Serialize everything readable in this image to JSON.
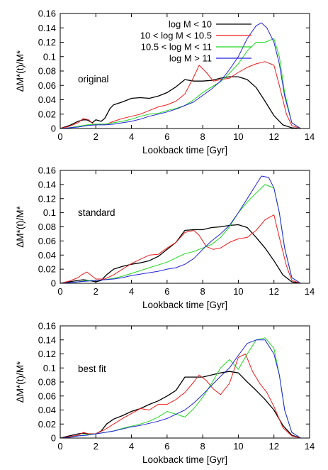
{
  "figure": {
    "ylabel": "ΔM*(t)/M*",
    "xlabel": "Lookback time [Gyr]",
    "colors": {
      "log M < 10": "#000000",
      "10 < log M < 10.5": "#ee1c1c",
      "10.5 < log M < 11": "#1fd81f",
      "log M > 11": "#2222dd"
    }
  },
  "chart_data": [
    {
      "type": "line",
      "panel_label": "original",
      "xlabel": "Lookback time [Gyr]",
      "ylabel": "ΔM*(t)/M*",
      "xlim": [
        0,
        14
      ],
      "ylim": [
        0,
        0.16
      ],
      "xticks": [
        "0",
        "2",
        "4",
        "6",
        "8",
        "10",
        "12",
        "14"
      ],
      "yticks": [
        "0",
        "0.02",
        "0.04",
        "0.06",
        "0.08",
        "0.1",
        "0.12",
        "0.14",
        "0.16"
      ],
      "legend": [
        "log M < 10",
        "10 < log M < 10.5",
        "10.5 < log M < 11",
        "log M > 11"
      ],
      "legend_position": "top-center",
      "grid": false,
      "series": [
        {
          "name": "log M < 10",
          "color": "#000000",
          "x": [
            0,
            0.5,
            1,
            1.3,
            1.5,
            1.8,
            2,
            2.3,
            2.5,
            2.8,
            3,
            3.5,
            4,
            4.5,
            5,
            5.5,
            6,
            6.5,
            7,
            7.5,
            8,
            8.5,
            9,
            9.5,
            10,
            10.5,
            11,
            11.5,
            12,
            12.5,
            13,
            13.5
          ],
          "y": [
            0,
            0.004,
            0.01,
            0.012,
            0.012,
            0.008,
            0.012,
            0.01,
            0.014,
            0.028,
            0.033,
            0.037,
            0.042,
            0.043,
            0.042,
            0.045,
            0.05,
            0.058,
            0.068,
            0.066,
            0.066,
            0.067,
            0.07,
            0.072,
            0.072,
            0.068,
            0.057,
            0.038,
            0.018,
            0.005,
            0.001,
            0
          ]
        },
        {
          "name": "10 < log M < 10.5",
          "color": "#ee1c1c",
          "x": [
            0,
            0.5,
            1,
            1.3,
            1.6,
            1.9,
            2.2,
            2.6,
            3,
            3.5,
            4,
            4.5,
            5,
            5.5,
            6,
            6.5,
            7,
            7.5,
            7.8,
            8.2,
            8.6,
            9,
            9.5,
            10,
            10.5,
            11,
            11.5,
            12,
            12.3,
            12.7,
            13,
            13.5
          ],
          "y": [
            0,
            0.003,
            0.008,
            0.014,
            0.012,
            0.005,
            0.006,
            0.006,
            0.01,
            0.014,
            0.017,
            0.02,
            0.025,
            0.03,
            0.033,
            0.038,
            0.048,
            0.072,
            0.088,
            0.078,
            0.066,
            0.068,
            0.07,
            0.078,
            0.085,
            0.09,
            0.093,
            0.088,
            0.06,
            0.02,
            0.004,
            0
          ]
        },
        {
          "name": "10.5 < log M < 11",
          "color": "#1fd81f",
          "x": [
            0,
            0.5,
            1,
            1.5,
            2,
            2.5,
            3,
            3.5,
            4,
            4.5,
            5,
            5.5,
            6,
            6.5,
            7,
            7.5,
            8,
            8.5,
            9,
            9.5,
            10,
            10.5,
            11,
            11.5,
            12,
            12.3,
            12.6,
            13,
            13.5
          ],
          "y": [
            0,
            0.001,
            0.003,
            0.005,
            0.006,
            0.006,
            0.008,
            0.01,
            0.013,
            0.017,
            0.02,
            0.021,
            0.025,
            0.028,
            0.032,
            0.04,
            0.05,
            0.058,
            0.065,
            0.077,
            0.09,
            0.108,
            0.12,
            0.12,
            0.125,
            0.1,
            0.05,
            0.008,
            0
          ]
        },
        {
          "name": "log M > 11",
          "color": "#2222dd",
          "x": [
            0,
            0.5,
            1,
            1.5,
            2,
            2.5,
            3,
            3.5,
            4,
            4.5,
            5,
            5.5,
            6,
            6.5,
            7,
            7.5,
            8,
            8.5,
            9,
            9.5,
            10,
            10.5,
            11,
            11.3,
            11.6,
            12,
            12.3,
            12.6,
            13,
            13.5
          ],
          "y": [
            0,
            0.001,
            0.002,
            0.004,
            0.005,
            0.005,
            0.006,
            0.008,
            0.01,
            0.013,
            0.017,
            0.02,
            0.023,
            0.027,
            0.032,
            0.037,
            0.046,
            0.055,
            0.066,
            0.082,
            0.1,
            0.125,
            0.143,
            0.147,
            0.14,
            0.12,
            0.09,
            0.045,
            0.008,
            0
          ]
        }
      ]
    },
    {
      "type": "line",
      "panel_label": "standard",
      "xlabel": "Lookback time [Gyr]",
      "ylabel": "ΔM*(t)/M*",
      "xlim": [
        0,
        14
      ],
      "ylim": [
        0,
        0.16
      ],
      "xticks": [
        "0",
        "2",
        "4",
        "6",
        "8",
        "10",
        "12",
        "14"
      ],
      "yticks": [
        "0",
        "0.02",
        "0.04",
        "0.06",
        "0.08",
        "0.1",
        "0.12",
        "0.14",
        "0.16"
      ],
      "grid": false,
      "series": [
        {
          "name": "log M < 10",
          "color": "#000000",
          "x": [
            0,
            0.5,
            1,
            1.3,
            1.6,
            2,
            2.3,
            2.6,
            3,
            3.5,
            4,
            4.5,
            5,
            5.5,
            6,
            6.5,
            7,
            7.5,
            8,
            8.5,
            9,
            9.5,
            10,
            10.5,
            11,
            11.5,
            12,
            12.5,
            13,
            13.5
          ],
          "y": [
            0,
            0.002,
            0.004,
            0.005,
            0.004,
            0.002,
            0.004,
            0.012,
            0.02,
            0.024,
            0.027,
            0.029,
            0.032,
            0.038,
            0.048,
            0.058,
            0.075,
            0.076,
            0.076,
            0.079,
            0.08,
            0.082,
            0.083,
            0.079,
            0.065,
            0.05,
            0.032,
            0.012,
            0.002,
            0
          ]
        },
        {
          "name": "10 < log M < 10.5",
          "color": "#ee1c1c",
          "x": [
            0,
            0.5,
            1,
            1.2,
            1.5,
            1.8,
            2,
            2.5,
            3,
            3.5,
            4,
            4.5,
            5,
            5.5,
            6,
            6.5,
            7,
            7.5,
            7.8,
            8.2,
            8.6,
            9,
            9.5,
            10,
            10.5,
            11,
            11.5,
            12,
            12.3,
            12.7,
            13,
            13.5
          ],
          "y": [
            0,
            0.003,
            0.008,
            0.012,
            0.016,
            0.01,
            0.006,
            0.006,
            0.012,
            0.02,
            0.028,
            0.034,
            0.04,
            0.041,
            0.05,
            0.058,
            0.072,
            0.075,
            0.068,
            0.052,
            0.048,
            0.05,
            0.058,
            0.063,
            0.065,
            0.075,
            0.09,
            0.097,
            0.065,
            0.025,
            0.004,
            0
          ]
        },
        {
          "name": "10.5 < log M < 11",
          "color": "#1fd81f",
          "x": [
            0,
            0.5,
            1,
            1.5,
            2,
            2.5,
            3,
            3.5,
            4,
            4.5,
            5,
            5.5,
            6,
            6.5,
            7,
            7.5,
            8,
            8.5,
            9,
            9.5,
            10,
            10.5,
            11,
            11.5,
            12,
            12.3,
            12.6,
            13,
            13.5
          ],
          "y": [
            0,
            0.001,
            0.002,
            0.004,
            0.004,
            0.005,
            0.007,
            0.01,
            0.014,
            0.018,
            0.022,
            0.026,
            0.03,
            0.036,
            0.042,
            0.045,
            0.05,
            0.055,
            0.065,
            0.08,
            0.1,
            0.115,
            0.128,
            0.14,
            0.135,
            0.1,
            0.05,
            0.008,
            0
          ]
        },
        {
          "name": "log M > 11",
          "color": "#2222dd",
          "x": [
            0,
            0.5,
            1,
            1.5,
            2,
            2.5,
            3,
            3.5,
            4,
            4.5,
            5,
            5.5,
            6,
            6.5,
            7,
            7.5,
            8,
            8.5,
            9,
            9.5,
            10,
            10.5,
            11,
            11.3,
            11.7,
            12,
            12.3,
            12.6,
            13,
            13.5
          ],
          "y": [
            0,
            0.001,
            0.002,
            0.003,
            0.004,
            0.005,
            0.006,
            0.008,
            0.011,
            0.013,
            0.015,
            0.017,
            0.02,
            0.022,
            0.027,
            0.035,
            0.048,
            0.06,
            0.07,
            0.082,
            0.1,
            0.12,
            0.14,
            0.152,
            0.15,
            0.135,
            0.1,
            0.05,
            0.008,
            0
          ]
        }
      ]
    },
    {
      "type": "line",
      "panel_label": "best fit",
      "xlabel": "Lookback time [Gyr]",
      "ylabel": "ΔM*(t)/M*",
      "xlim": [
        0,
        14
      ],
      "ylim": [
        0,
        0.16
      ],
      "xticks": [
        "0",
        "2",
        "4",
        "6",
        "8",
        "10",
        "12",
        "14"
      ],
      "yticks": [
        "0",
        "0.02",
        "0.04",
        "0.06",
        "0.08",
        "0.1",
        "0.12",
        "0.14",
        "0.16"
      ],
      "grid": false,
      "series": [
        {
          "name": "log M < 10",
          "color": "#000000",
          "x": [
            0,
            0.5,
            1,
            1.3,
            1.6,
            2,
            2.3,
            2.6,
            3,
            3.5,
            4,
            4.5,
            5,
            5.5,
            6,
            6.5,
            7,
            7.5,
            8,
            8.5,
            9,
            9.5,
            10,
            10.5,
            11,
            11.5,
            12,
            12.5,
            13,
            13.5
          ],
          "y": [
            0,
            0.003,
            0.006,
            0.007,
            0.006,
            0.006,
            0.01,
            0.02,
            0.027,
            0.032,
            0.038,
            0.042,
            0.048,
            0.053,
            0.06,
            0.068,
            0.087,
            0.087,
            0.087,
            0.09,
            0.093,
            0.095,
            0.093,
            0.08,
            0.068,
            0.055,
            0.04,
            0.018,
            0.004,
            0
          ]
        },
        {
          "name": "10 < log M < 10.5",
          "color": "#ee1c1c",
          "x": [
            0,
            0.5,
            1,
            1.3,
            1.6,
            2,
            2.5,
            3,
            3.5,
            4,
            4.5,
            5,
            5.5,
            6,
            6.5,
            7,
            7.5,
            7.8,
            8.2,
            8.6,
            9,
            9.5,
            10,
            10.4,
            10.8,
            11.2,
            11.6,
            12,
            12.5,
            13,
            13.5
          ],
          "y": [
            0,
            0.002,
            0.004,
            0.008,
            0.006,
            0.006,
            0.012,
            0.02,
            0.028,
            0.035,
            0.042,
            0.04,
            0.048,
            0.048,
            0.055,
            0.065,
            0.08,
            0.09,
            0.082,
            0.07,
            0.062,
            0.078,
            0.115,
            0.12,
            0.095,
            0.078,
            0.065,
            0.045,
            0.015,
            0.003,
            0
          ]
        },
        {
          "name": "10.5 < log M < 11",
          "color": "#1fd81f",
          "x": [
            0,
            0.5,
            1,
            1.5,
            2,
            2.5,
            3,
            3.5,
            4,
            4.5,
            5,
            5.5,
            6,
            6.5,
            7,
            7.5,
            8,
            8.5,
            9,
            9.5,
            10,
            10.5,
            11,
            11.5,
            12,
            12.3,
            12.6,
            13,
            13.5
          ],
          "y": [
            0,
            0.001,
            0.003,
            0.005,
            0.006,
            0.008,
            0.01,
            0.014,
            0.017,
            0.02,
            0.024,
            0.03,
            0.038,
            0.034,
            0.03,
            0.042,
            0.058,
            0.078,
            0.1,
            0.112,
            0.098,
            0.12,
            0.14,
            0.143,
            0.128,
            0.09,
            0.04,
            0.008,
            0
          ]
        },
        {
          "name": "log M > 11",
          "color": "#2222dd",
          "x": [
            0,
            0.5,
            1,
            1.5,
            2,
            2.5,
            3,
            3.5,
            4,
            4.5,
            5,
            5.5,
            6,
            6.5,
            7,
            7.5,
            8,
            8.5,
            9,
            9.5,
            10,
            10.5,
            11,
            11.5,
            12,
            12.3,
            12.6,
            13,
            13.5
          ],
          "y": [
            0,
            0.001,
            0.003,
            0.004,
            0.006,
            0.008,
            0.01,
            0.013,
            0.016,
            0.018,
            0.021,
            0.024,
            0.028,
            0.034,
            0.04,
            0.05,
            0.062,
            0.075,
            0.088,
            0.1,
            0.118,
            0.135,
            0.14,
            0.14,
            0.12,
            0.09,
            0.04,
            0.008,
            0
          ]
        }
      ]
    }
  ]
}
